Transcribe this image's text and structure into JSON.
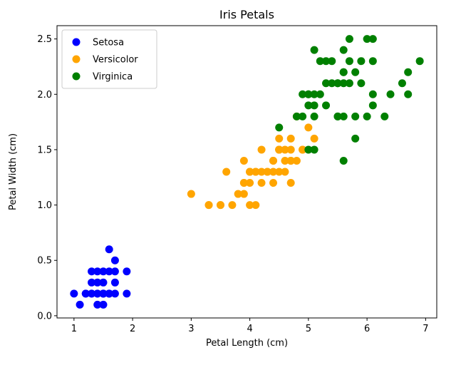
{
  "chart_data": {
    "type": "scatter",
    "title": "Iris Petals",
    "xlabel": "Petal Length (cm)",
    "ylabel": "Petal Width (cm)",
    "xlim": [
      0.71,
      7.19
    ],
    "ylim": [
      -0.02,
      2.62
    ],
    "xticks": [
      1,
      2,
      3,
      4,
      5,
      6,
      7
    ],
    "yticks": [
      0.0,
      0.5,
      1.0,
      1.5,
      2.0,
      2.5
    ],
    "grid": false,
    "legend_position": "top-left",
    "series": [
      {
        "name": "Setosa",
        "color": "#0000ff",
        "points": [
          [
            1.4,
            0.2
          ],
          [
            1.3,
            0.2
          ],
          [
            1.5,
            0.2
          ],
          [
            1.7,
            0.4
          ],
          [
            1.4,
            0.3
          ],
          [
            1.5,
            0.1
          ],
          [
            1.6,
            0.2
          ],
          [
            1.1,
            0.1
          ],
          [
            1.2,
            0.2
          ],
          [
            1.5,
            0.4
          ],
          [
            1.3,
            0.4
          ],
          [
            1.7,
            0.3
          ],
          [
            1.0,
            0.2
          ],
          [
            1.7,
            0.5
          ],
          [
            1.9,
            0.2
          ],
          [
            1.6,
            0.4
          ],
          [
            1.5,
            0.3
          ],
          [
            1.4,
            0.1
          ],
          [
            1.6,
            0.6
          ],
          [
            1.9,
            0.4
          ],
          [
            1.3,
            0.3
          ],
          [
            1.4,
            0.4
          ],
          [
            1.2,
            0.2
          ],
          [
            1.6,
            0.2
          ],
          [
            1.7,
            0.2
          ],
          [
            1.3,
            0.2
          ],
          [
            1.5,
            0.2
          ],
          [
            1.4,
            0.2
          ],
          [
            1.6,
            0.2
          ],
          [
            1.5,
            0.2
          ]
        ]
      },
      {
        "name": "Versicolor",
        "color": "#ffa500",
        "points": [
          [
            4.7,
            1.4
          ],
          [
            4.5,
            1.5
          ],
          [
            4.9,
            1.5
          ],
          [
            4.0,
            1.3
          ],
          [
            4.6,
            1.5
          ],
          [
            4.5,
            1.3
          ],
          [
            4.7,
            1.6
          ],
          [
            3.3,
            1.0
          ],
          [
            4.6,
            1.3
          ],
          [
            3.9,
            1.4
          ],
          [
            3.5,
            1.0
          ],
          [
            4.2,
            1.5
          ],
          [
            4.0,
            1.0
          ],
          [
            4.7,
            1.4
          ],
          [
            3.6,
            1.3
          ],
          [
            4.4,
            1.4
          ],
          [
            4.5,
            1.5
          ],
          [
            4.1,
            1.0
          ],
          [
            4.5,
            1.5
          ],
          [
            3.9,
            1.1
          ],
          [
            4.8,
            1.8
          ],
          [
            4.0,
            1.3
          ],
          [
            4.9,
            1.5
          ],
          [
            4.7,
            1.2
          ],
          [
            4.3,
            1.3
          ],
          [
            4.4,
            1.4
          ],
          [
            4.8,
            1.4
          ],
          [
            5.0,
            1.7
          ],
          [
            4.5,
            1.5
          ],
          [
            3.5,
            1.0
          ],
          [
            3.8,
            1.1
          ],
          [
            3.7,
            1.0
          ],
          [
            3.9,
            1.2
          ],
          [
            5.1,
            1.6
          ],
          [
            4.5,
            1.5
          ],
          [
            4.5,
            1.6
          ],
          [
            4.7,
            1.5
          ],
          [
            4.4,
            1.3
          ],
          [
            4.1,
            1.3
          ],
          [
            4.0,
            1.3
          ],
          [
            4.4,
            1.2
          ],
          [
            4.6,
            1.4
          ],
          [
            4.0,
            1.2
          ],
          [
            3.3,
            1.0
          ],
          [
            4.2,
            1.3
          ],
          [
            4.2,
            1.2
          ],
          [
            4.3,
            1.3
          ],
          [
            3.0,
            1.1
          ],
          [
            4.1,
            1.3
          ],
          [
            3.9,
            1.2
          ]
        ]
      },
      {
        "name": "Virginica",
        "color": "#008000",
        "points": [
          [
            6.0,
            2.5
          ],
          [
            5.1,
            1.9
          ],
          [
            5.9,
            2.1
          ],
          [
            5.6,
            1.8
          ],
          [
            5.8,
            2.2
          ],
          [
            6.6,
            2.1
          ],
          [
            4.5,
            1.7
          ],
          [
            6.3,
            1.8
          ],
          [
            5.8,
            1.8
          ],
          [
            6.1,
            2.5
          ],
          [
            5.1,
            2.0
          ],
          [
            5.3,
            1.9
          ],
          [
            5.5,
            2.1
          ],
          [
            5.0,
            2.0
          ],
          [
            5.1,
            2.4
          ],
          [
            5.3,
            2.3
          ],
          [
            5.5,
            1.8
          ],
          [
            6.7,
            2.2
          ],
          [
            6.9,
            2.3
          ],
          [
            5.0,
            1.5
          ],
          [
            5.7,
            2.3
          ],
          [
            4.9,
            2.0
          ],
          [
            6.7,
            2.0
          ],
          [
            4.9,
            1.8
          ],
          [
            5.7,
            2.1
          ],
          [
            6.0,
            1.8
          ],
          [
            4.8,
            1.8
          ],
          [
            5.4,
            2.1
          ],
          [
            5.6,
            2.1
          ],
          [
            5.8,
            1.6
          ],
          [
            6.1,
            1.9
          ],
          [
            6.4,
            2.0
          ],
          [
            5.6,
            2.2
          ],
          [
            5.1,
            1.5
          ],
          [
            5.6,
            1.4
          ],
          [
            6.1,
            2.3
          ],
          [
            5.6,
            2.4
          ],
          [
            5.5,
            1.8
          ],
          [
            5.4,
            2.3
          ],
          [
            5.2,
            2.3
          ],
          [
            5.2,
            2.0
          ],
          [
            5.0,
            1.9
          ],
          [
            5.1,
            1.8
          ],
          [
            5.7,
            2.5
          ],
          [
            6.1,
            2.0
          ],
          [
            5.9,
            2.3
          ],
          [
            5.0,
            2.0
          ],
          [
            5.3,
            2.1
          ],
          [
            5.5,
            2.1
          ],
          [
            5.6,
            2.2
          ]
        ]
      }
    ]
  }
}
